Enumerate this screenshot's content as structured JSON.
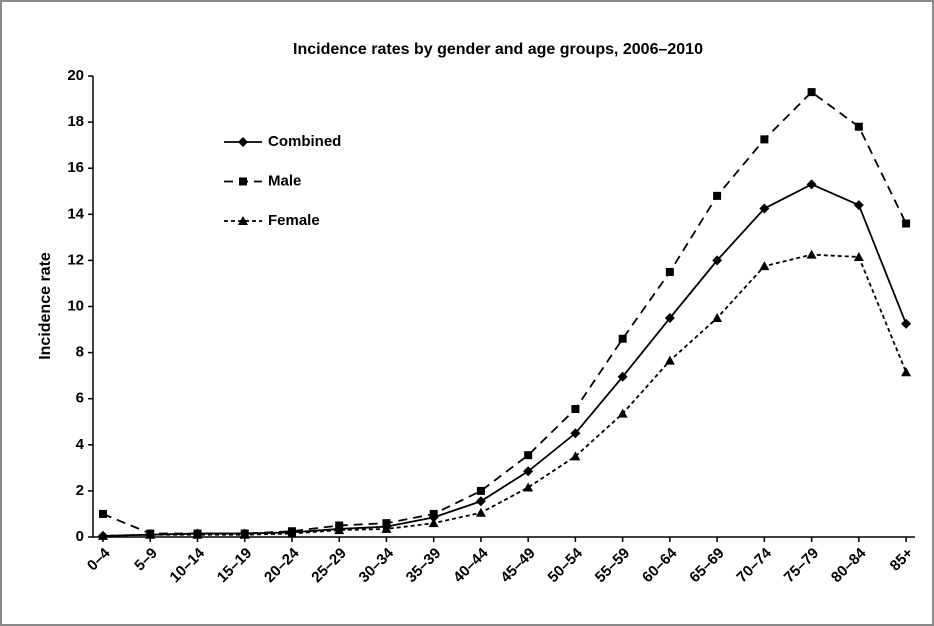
{
  "chart_data": {
    "type": "line",
    "title": "Incidence rates by gender and age groups, 2006–2010",
    "y_label": "Incidence rate",
    "categories": [
      "0–4",
      "5–9",
      "10–14",
      "15–19",
      "20–24",
      "25–29",
      "30–34",
      "35–39",
      "40–44",
      "45–49",
      "50–54",
      "55–59",
      "60–64",
      "65–69",
      "70–74",
      "75–79",
      "80–84",
      "85+"
    ],
    "series": [
      {
        "name": "Combined",
        "color": "#000000",
        "marker": "diamond",
        "dash": "none",
        "values": [
          0.05,
          0.1,
          0.15,
          0.15,
          0.2,
          0.35,
          0.45,
          0.85,
          1.55,
          2.85,
          4.5,
          6.95,
          9.5,
          12.0,
          14.25,
          15.3,
          14.4,
          9.25
        ]
      },
      {
        "name": "Male",
        "color": "#000000",
        "marker": "square",
        "dash": "9,6",
        "values": [
          1.0,
          0.15,
          0.15,
          0.15,
          0.25,
          0.5,
          0.6,
          1.0,
          2.0,
          3.55,
          5.55,
          8.6,
          11.5,
          14.8,
          17.25,
          19.3,
          17.8,
          13.6
        ]
      },
      {
        "name": "Female",
        "color": "#000000",
        "marker": "triangle",
        "dash": "4,3",
        "values": [
          0.05,
          0.1,
          0.1,
          0.1,
          0.15,
          0.3,
          0.35,
          0.6,
          1.05,
          2.15,
          3.5,
          5.35,
          7.65,
          9.5,
          11.75,
          12.25,
          12.15,
          7.15
        ]
      }
    ],
    "ylim": [
      0,
      20
    ],
    "yticks": [
      0,
      2,
      4,
      6,
      8,
      10,
      12,
      14,
      16,
      18,
      20
    ],
    "grid": false,
    "legend": "top-left"
  }
}
